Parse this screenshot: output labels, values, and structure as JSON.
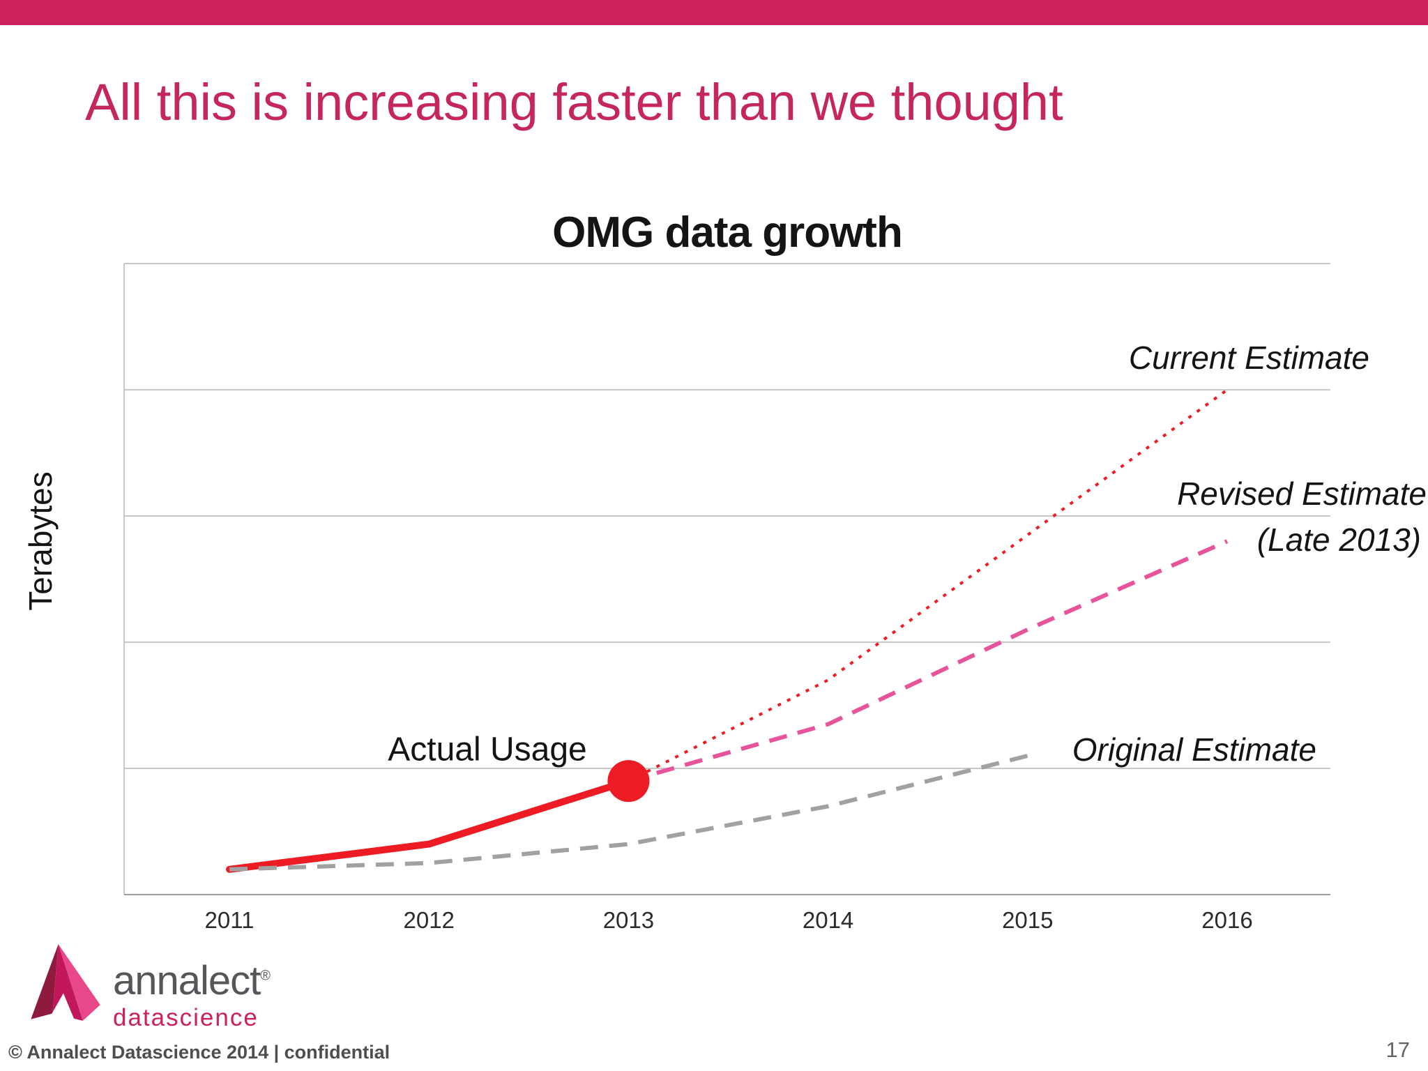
{
  "slide": {
    "title": "All this is increasing faster than we thought",
    "accent_color": "#cc2159"
  },
  "chart_data": {
    "type": "line",
    "title": "OMG data growth",
    "ylabel": "Terabytes",
    "xlabel": "",
    "x_ticks": [
      "2011",
      "2012",
      "2013",
      "2014",
      "2015",
      "2016"
    ],
    "ylim": [
      0,
      100
    ],
    "y_tick_interval": 20,
    "y_numeric_labels_shown": false,
    "grid": "horizontal",
    "legend_position": "inline-annotations",
    "series": [
      {
        "name": "Actual Usage",
        "style": "solid",
        "color": "#ed1c24",
        "endpoint_marker": true,
        "x": [
          2011,
          2012,
          2013
        ],
        "values": [
          4,
          8,
          18
        ]
      },
      {
        "name": "Current Estimate",
        "style": "dotted",
        "color": "#ed1c24",
        "x": [
          2013,
          2014,
          2015,
          2016
        ],
        "values": [
          18,
          34,
          57,
          80
        ]
      },
      {
        "name": "Revised Estimate (Late 2013)",
        "style": "dashed",
        "color": "#e8549b",
        "x": [
          2013,
          2014,
          2015,
          2016
        ],
        "values": [
          18,
          27,
          42,
          56
        ]
      },
      {
        "name": "Original Estimate",
        "style": "dashed",
        "color": "#a1a1a1",
        "x": [
          2011,
          2012,
          2013,
          2014,
          2015
        ],
        "values": [
          4,
          5,
          8,
          14,
          22
        ]
      }
    ],
    "annotations": {
      "actual_usage": "Actual Usage",
      "current_estimate": "Current Estimate",
      "revised_estimate_line1": "Revised Estimate",
      "revised_estimate_line2": "(Late 2013)",
      "original_estimate": "Original Estimate"
    }
  },
  "logo": {
    "name": "annalect",
    "registered": "®",
    "sub": "datascience"
  },
  "footer": {
    "copyright": "© Annalect Datascience 2014 | confidential",
    "page_number": "17"
  }
}
